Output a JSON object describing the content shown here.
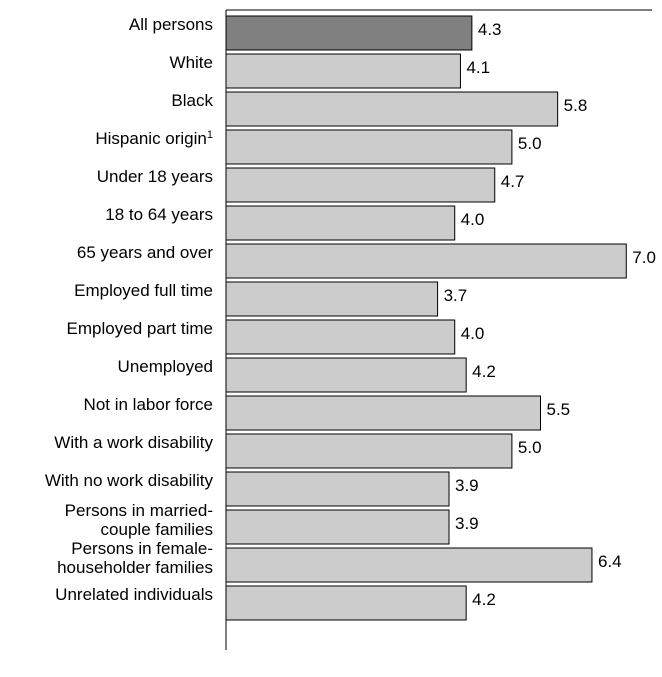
{
  "chart_data": {
    "type": "bar",
    "orientation": "horizontal",
    "categories": [
      [
        "All persons"
      ],
      [
        "White"
      ],
      [
        "Black"
      ],
      [
        "Hispanic origin",
        "1"
      ],
      [
        "Under 18 years"
      ],
      [
        "18 to 64 years"
      ],
      [
        "65 years and over"
      ],
      [
        "Employed full time"
      ],
      [
        "Employed part time"
      ],
      [
        "Unemployed"
      ],
      [
        "Not in labor force"
      ],
      [
        "With a work disability"
      ],
      [
        "With no work disability"
      ],
      [
        "Persons in married-",
        "couple families"
      ],
      [
        "Persons in female-",
        "householder families"
      ],
      [
        "Unrelated individuals"
      ]
    ],
    "values": [
      4.3,
      4.1,
      5.8,
      5.0,
      4.7,
      4.0,
      7.0,
      3.7,
      4.0,
      4.2,
      5.5,
      5.0,
      3.9,
      3.9,
      6.4,
      4.2
    ],
    "value_labels": [
      "4.3",
      "4.1",
      "5.8",
      "5.0",
      "4.7",
      "4.0",
      "7.0",
      "3.7",
      "4.0",
      "4.2",
      "5.5",
      "5.0",
      "3.9",
      "3.9",
      "6.4",
      "4.2"
    ],
    "highlight_index": 0,
    "colors": {
      "highlight": "#808080",
      "bar": "#cccccc"
    },
    "xlim": [
      0,
      7.45
    ],
    "grid": false,
    "title": "",
    "xlabel": "",
    "ylabel": ""
  }
}
